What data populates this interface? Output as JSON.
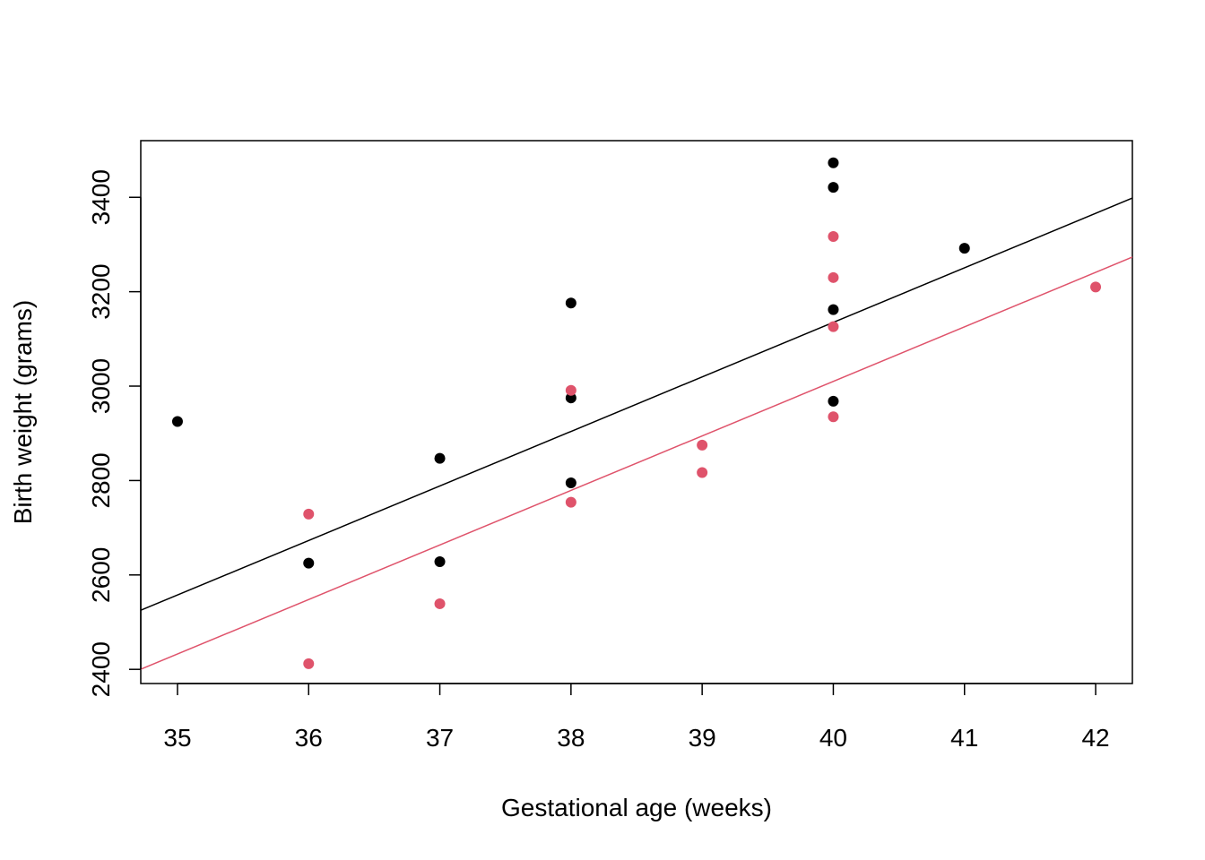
{
  "chart_data": {
    "type": "scatter",
    "title": "",
    "xlabel": "Gestational age (weeks)",
    "ylabel": "Birth weight (grams)",
    "xlim": [
      34.72,
      42.28
    ],
    "ylim": [
      2370,
      3520
    ],
    "x_ticks": [
      35,
      36,
      37,
      38,
      39,
      40,
      41,
      42
    ],
    "y_ticks": [
      2400,
      2600,
      2800,
      3000,
      3200,
      3400
    ],
    "grid": false,
    "legend": "none",
    "series": [
      {
        "color": "#000000",
        "points": [
          {
            "x": 35,
            "y": 2925
          },
          {
            "x": 36,
            "y": 2625
          },
          {
            "x": 37,
            "y": 2847
          },
          {
            "x": 37,
            "y": 2628
          },
          {
            "x": 38,
            "y": 3176
          },
          {
            "x": 38,
            "y": 2975
          },
          {
            "x": 38,
            "y": 2795
          },
          {
            "x": 40,
            "y": 3473
          },
          {
            "x": 40,
            "y": 3421
          },
          {
            "x": 40,
            "y": 3162
          },
          {
            "x": 40,
            "y": 2968
          },
          {
            "x": 41,
            "y": 3292
          }
        ],
        "fit_line": {
          "intercept": -1485.0,
          "slope": 115.5
        }
      },
      {
        "color": "#DF536B",
        "points": [
          {
            "x": 36,
            "y": 2729
          },
          {
            "x": 36,
            "y": 2412
          },
          {
            "x": 37,
            "y": 2539
          },
          {
            "x": 38,
            "y": 2991
          },
          {
            "x": 38,
            "y": 2754
          },
          {
            "x": 39,
            "y": 2817
          },
          {
            "x": 39,
            "y": 2875
          },
          {
            "x": 40,
            "y": 3317
          },
          {
            "x": 40,
            "y": 3230
          },
          {
            "x": 40,
            "y": 3126
          },
          {
            "x": 40,
            "y": 2935
          },
          {
            "x": 42,
            "y": 3210
          }
        ],
        "fit_line": {
          "intercept": -1610.0,
          "slope": 115.5
        }
      }
    ]
  }
}
